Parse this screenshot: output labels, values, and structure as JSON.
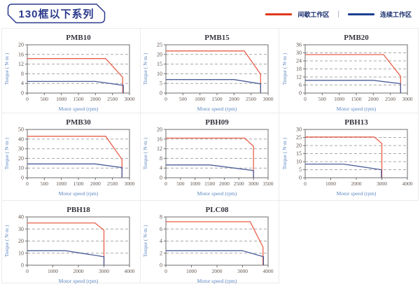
{
  "header": {
    "title": "130框以下系列",
    "legend": {
      "intermittent_label": "间歇工作区",
      "continuous_label": "连续工作区",
      "separator": "|",
      "intermittent_color": "#e0371c",
      "continuous_color": "#1d3f8f"
    }
  },
  "colors": {
    "intermittent": "#e8604a",
    "continuous": "#4a5d99",
    "grid": "#a8a8a8",
    "frame": "#6e6e6e",
    "tick_label": "#63564e",
    "axis_label": "#5b86c2",
    "chart_title": "#36363f"
  },
  "chart_data": [
    {
      "type": "line",
      "title": "PMB10",
      "xlabel": "Motor speed (rpm)",
      "ylabel": "Torque ( N·m )",
      "xlim": [
        0,
        3000
      ],
      "xticks": [
        0,
        500,
        1000,
        1500,
        2000,
        2500,
        3000
      ],
      "ylim": [
        0,
        20
      ],
      "yticks": [
        0,
        4,
        8,
        12,
        16,
        20
      ],
      "grid": "dashed-horizontal",
      "legend_position": "none",
      "series": [
        {
          "name": "间歇工作区",
          "color_key": "intermittent",
          "points": [
            [
              0,
              14.3
            ],
            [
              2300,
              14.3
            ],
            [
              2800,
              6.5
            ],
            [
              2800,
              0
            ]
          ]
        },
        {
          "name": "连续工作区",
          "color_key": "continuous",
          "points": [
            [
              0,
              4.8
            ],
            [
              2000,
              4.8
            ],
            [
              2820,
              3.2
            ],
            [
              2820,
              0
            ]
          ]
        }
      ]
    },
    {
      "type": "line",
      "title": "PMB15",
      "xlabel": "Motor speed (rpm)",
      "ylabel": "Torque ( N·m )",
      "xlim": [
        0,
        3000
      ],
      "xticks": [
        0,
        500,
        1000,
        1500,
        2000,
        2500,
        3000
      ],
      "ylim": [
        0,
        25
      ],
      "yticks": [
        0,
        5,
        10,
        15,
        20,
        25
      ],
      "grid": "dashed-horizontal",
      "legend_position": "none",
      "series": [
        {
          "name": "间歇工作区",
          "color_key": "intermittent",
          "points": [
            [
              0,
              21.8
            ],
            [
              2300,
              21.8
            ],
            [
              2780,
              9.8
            ],
            [
              2780,
              0
            ]
          ]
        },
        {
          "name": "连续工作区",
          "color_key": "continuous",
          "points": [
            [
              0,
              7
            ],
            [
              2000,
              7
            ],
            [
              2780,
              4.8
            ],
            [
              2780,
              0
            ]
          ]
        }
      ]
    },
    {
      "type": "line",
      "title": "PMB20",
      "xlabel": "Motor speed (rpm)",
      "ylabel": "Torque ( N·m )",
      "xlim": [
        0,
        3000
      ],
      "xticks": [
        0,
        500,
        1000,
        1500,
        2000,
        2500,
        3000
      ],
      "ylim": [
        0,
        36
      ],
      "yticks": [
        0,
        6,
        12,
        18,
        24,
        30,
        36
      ],
      "grid": "dashed-horizontal",
      "legend_position": "none",
      "series": [
        {
          "name": "间歇工作区",
          "color_key": "intermittent",
          "points": [
            [
              0,
              28.7
            ],
            [
              2300,
              28.7
            ],
            [
              2800,
              12.5
            ],
            [
              2800,
              0
            ]
          ]
        },
        {
          "name": "连续工作区",
          "color_key": "continuous",
          "points": [
            [
              0,
              9.5
            ],
            [
              2000,
              9.5
            ],
            [
              2800,
              7
            ],
            [
              2800,
              0
            ]
          ]
        }
      ]
    },
    {
      "type": "line",
      "title": "PMB30",
      "xlabel": "Motor speed (rpm)",
      "ylabel": "Torque ( N·m )",
      "xlim": [
        0,
        3000
      ],
      "xticks": [
        0,
        500,
        1000,
        1500,
        2000,
        2500,
        3000
      ],
      "ylim": [
        0,
        50
      ],
      "yticks": [
        0,
        10,
        20,
        30,
        40,
        50
      ],
      "grid": "dashed-horizontal",
      "legend_position": "none",
      "series": [
        {
          "name": "间歇工作区",
          "color_key": "intermittent",
          "points": [
            [
              0,
              43
            ],
            [
              2300,
              43
            ],
            [
              2780,
              19
            ],
            [
              2780,
              0
            ]
          ]
        },
        {
          "name": "连续工作区",
          "color_key": "continuous",
          "points": [
            [
              0,
              14.3
            ],
            [
              2000,
              14.3
            ],
            [
              2780,
              10.5
            ],
            [
              2780,
              0
            ]
          ]
        }
      ]
    },
    {
      "type": "line",
      "title": "PBH09",
      "xlabel": "Motor speed (rpm)",
      "ylabel": "Torque ( N·m )",
      "xlim": [
        0,
        3500
      ],
      "xticks": [
        0,
        500,
        1000,
        1500,
        2000,
        2500,
        3000,
        3500
      ],
      "ylim": [
        0,
        20
      ],
      "yticks": [
        0,
        4,
        8,
        12,
        16,
        20
      ],
      "grid": "dashed-horizontal",
      "legend_position": "none",
      "series": [
        {
          "name": "间歇工作区",
          "color_key": "intermittent",
          "points": [
            [
              0,
              16.4
            ],
            [
              2700,
              16.4
            ],
            [
              3000,
              13
            ],
            [
              3000,
              0
            ]
          ]
        },
        {
          "name": "连续工作区",
          "color_key": "continuous",
          "points": [
            [
              0,
              5.3
            ],
            [
              1500,
              5.3
            ],
            [
              3000,
              3
            ],
            [
              3000,
              0
            ]
          ]
        }
      ]
    },
    {
      "type": "line",
      "title": "PBH13",
      "xlabel": "Motor speed (rpm)",
      "ylabel": "Torque ( N·m )",
      "xlim": [
        0,
        4000
      ],
      "xticks": [
        0,
        1000,
        2000,
        3000,
        4000
      ],
      "ylim": [
        0,
        30
      ],
      "yticks": [
        0,
        5,
        10,
        15,
        20,
        25,
        30
      ],
      "grid": "dashed-horizontal",
      "legend_position": "none",
      "series": [
        {
          "name": "间歇工作区",
          "color_key": "intermittent",
          "points": [
            [
              0,
              25.3
            ],
            [
              2700,
              25.3
            ],
            [
              3000,
              21.3
            ],
            [
              3000,
              0
            ]
          ]
        },
        {
          "name": "连续工作区",
          "color_key": "continuous",
          "points": [
            [
              0,
              8.5
            ],
            [
              1500,
              8.5
            ],
            [
              2980,
              5
            ],
            [
              2980,
              0
            ]
          ]
        }
      ]
    },
    {
      "type": "line",
      "title": "PBH18",
      "xlabel": "Motor speed (rpm)",
      "ylabel": "Torque ( N·m )",
      "xlim": [
        0,
        4000
      ],
      "xticks": [
        0,
        1000,
        2000,
        3000,
        4000
      ],
      "ylim": [
        0,
        40
      ],
      "yticks": [
        0,
        10,
        20,
        30,
        40
      ],
      "grid": "dashed-horizontal",
      "legend_position": "none",
      "series": [
        {
          "name": "间歇工作区",
          "color_key": "intermittent",
          "points": [
            [
              0,
              35
            ],
            [
              2650,
              35
            ],
            [
              3000,
              29
            ],
            [
              3000,
              0
            ]
          ]
        },
        {
          "name": "连续工作区",
          "color_key": "continuous",
          "points": [
            [
              0,
              12
            ],
            [
              1500,
              12
            ],
            [
              3000,
              7
            ],
            [
              3000,
              0
            ]
          ]
        }
      ]
    },
    {
      "type": "line",
      "title": "PLC08",
      "xlabel": "Motor speed (rpm)",
      "ylabel": "Torque ( N·m )",
      "xlim": [
        0,
        4000
      ],
      "xticks": [
        0,
        1000,
        2000,
        3000,
        4000
      ],
      "ylim": [
        0,
        8
      ],
      "yticks": [
        0,
        2,
        4,
        6,
        8
      ],
      "grid": "dashed-horizontal",
      "legend_position": "none",
      "series": [
        {
          "name": "间歇工作区",
          "color_key": "intermittent",
          "points": [
            [
              0,
              7.2
            ],
            [
              3300,
              7.2
            ],
            [
              3800,
              3
            ],
            [
              3800,
              0
            ]
          ]
        },
        {
          "name": "连续工作区",
          "color_key": "continuous",
          "points": [
            [
              0,
              2.4
            ],
            [
              3000,
              2.4
            ],
            [
              3820,
              1.4
            ],
            [
              3820,
              0
            ]
          ]
        }
      ]
    }
  ]
}
